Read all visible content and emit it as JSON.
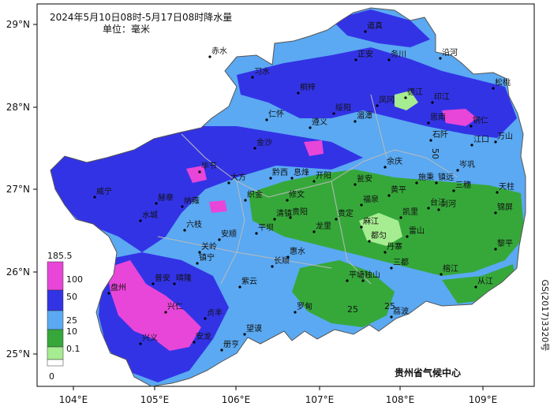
{
  "title": {
    "line1": "2024年5月10日08时-5月17日08时降水量",
    "line2": "单位：毫米"
  },
  "lat_labels": [
    "29°N",
    "28°N",
    "27°N",
    "26°N",
    "25°N"
  ],
  "lon_labels": [
    "104°E",
    "105°E",
    "106°E",
    "107°E",
    "108°E",
    "109°E"
  ],
  "legend": {
    "max_value": "185.5",
    "min_value": "0",
    "thresholds": [
      "100",
      "50",
      "25",
      "10",
      "0.1"
    ],
    "colors": {
      "c100": "#e846d8",
      "c50": "#3333e6",
      "c25": "#5aa9f2",
      "c10": "#36a83a",
      "c01": "#a6ec90",
      "c0": "#ffffff"
    }
  },
  "contour_labels": [
    "25",
    "25",
    "50"
  ],
  "credit": "贵州省气候中心",
  "approval_number": "GS(2017)3320号",
  "cities": [
    "道真",
    "赤水",
    "正安",
    "务川",
    "沿河",
    "习水",
    "桐梓",
    "凤冈",
    "德江",
    "印江",
    "松桃",
    "绥阳",
    "湄潭",
    "思南",
    "铜仁",
    "仁怀",
    "遵义",
    "石阡",
    "江口",
    "万山",
    "金沙",
    "余庆",
    "毕节",
    "大方",
    "黔西",
    "息烽",
    "开阳",
    "瓮安",
    "施秉",
    "镇远",
    "岑巩",
    "三穗",
    "天柱",
    "威宁",
    "赫章",
    "织金",
    "清镇",
    "修文",
    "贵阳",
    "福泉",
    "黄平",
    "剑河",
    "锦屏",
    "纳雍",
    "平坝",
    "龙里",
    "贵定",
    "麻江",
    "凯里",
    "台江",
    "雷山",
    "黎平",
    "水城",
    "六枝",
    "安顺",
    "惠水",
    "长顺",
    "都匀",
    "丹寨",
    "榕江",
    "从江",
    "盘州",
    "普安",
    "晴隆",
    "关岭",
    "镇宁",
    "紫云",
    "罗甸",
    "平塘",
    "独山",
    "三都",
    "兴仁",
    "贞丰",
    "望谟",
    "册亨",
    "安龙",
    "兴义",
    "荔波"
  ]
}
